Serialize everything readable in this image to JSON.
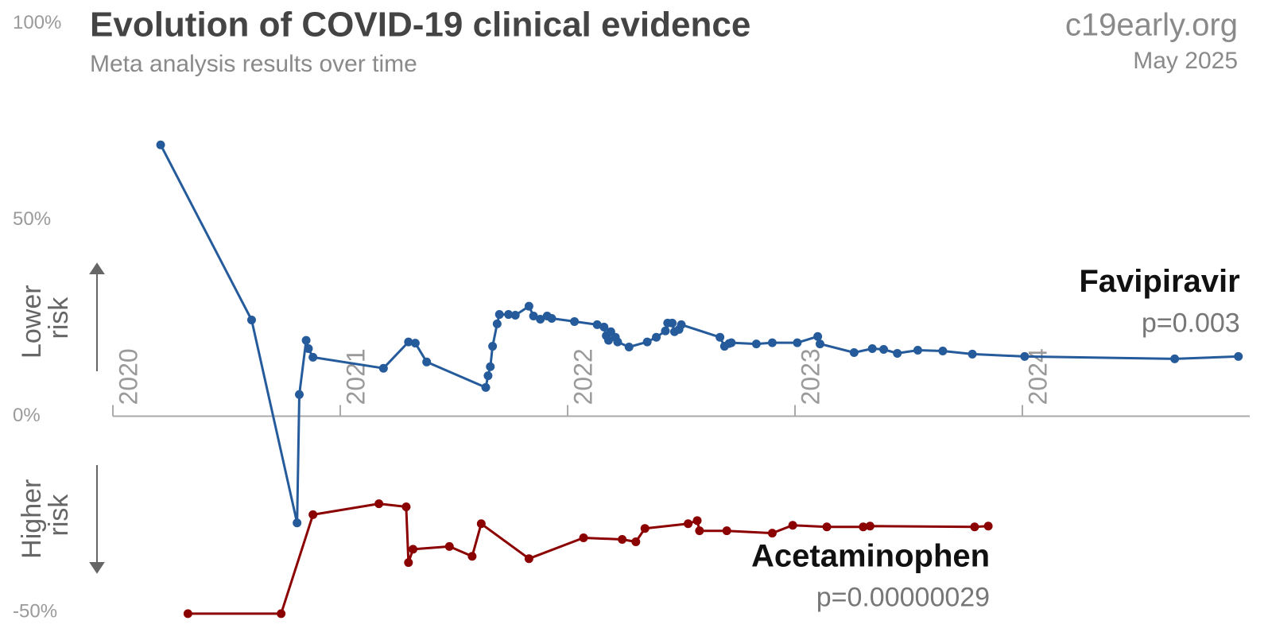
{
  "chart_data": {
    "type": "line",
    "title": "Evolution of COVID-19 clinical evidence",
    "subtitle": "Meta analysis results over time",
    "source": "c19early.org",
    "date": "May 2025",
    "upper_label": [
      "Lower",
      "risk"
    ],
    "lower_label": [
      "Higher",
      "risk"
    ],
    "xlim": [
      2020,
      2025
    ],
    "xticks": [
      2020,
      2021,
      2022,
      2023,
      2024
    ],
    "ylim": [
      -56,
      106
    ],
    "yticks": [
      {
        "value": 100,
        "label": "100%"
      },
      {
        "value": 50,
        "label": "50%"
      },
      {
        "value": 0,
        "label": "0%"
      },
      {
        "value": -50,
        "label": "-50%"
      }
    ],
    "series": [
      {
        "name": "Favipiravir",
        "p": "p=0.003",
        "color": "#255b9b",
        "x": [
          2020.21,
          2020.61,
          2020.81,
          2020.82,
          2020.85,
          2020.86,
          2020.88,
          2021.19,
          2021.3,
          2021.33,
          2021.38,
          2021.64,
          2021.65,
          2021.66,
          2021.67,
          2021.69,
          2021.7,
          2021.74,
          2021.77,
          2021.83,
          2021.85,
          2021.88,
          2021.91,
          2021.93,
          2022.03,
          2022.13,
          2022.16,
          2022.17,
          2022.18,
          2022.19,
          2022.21,
          2022.22,
          2022.27,
          2022.35,
          2022.39,
          2022.43,
          2022.44,
          2022.46,
          2022.47,
          2022.49,
          2022.5,
          2022.67,
          2022.69,
          2022.71,
          2022.72,
          2022.83,
          2022.9,
          2023.01,
          2023.1,
          2023.11,
          2023.26,
          2023.34,
          2023.39,
          2023.45,
          2023.54,
          2023.65,
          2023.78,
          2024.01,
          2024.67,
          2024.95
        ],
        "values": [
          69.1,
          24.5,
          -27.2,
          5.5,
          19.3,
          17.2,
          15.0,
          12.2,
          18.9,
          18.6,
          13.8,
          7.3,
          10.3,
          12.6,
          17.8,
          23.5,
          25.9,
          25.9,
          25.7,
          28.0,
          25.5,
          24.7,
          25.5,
          24.9,
          24.1,
          23.3,
          22.7,
          20.5,
          19.3,
          21.5,
          20.1,
          18.9,
          17.6,
          18.9,
          20.1,
          21.7,
          23.7,
          23.7,
          21.5,
          22.1,
          23.3,
          20.1,
          17.8,
          18.5,
          18.7,
          18.4,
          18.7,
          18.7,
          20.3,
          18.4,
          16.2,
          17.2,
          17.0,
          16.0,
          16.8,
          16.6,
          15.8,
          15.2,
          14.6,
          15.2
        ]
      },
      {
        "name": "Acetaminophen",
        "p": "p=0.00000029",
        "color": "#8b0000",
        "x": [
          2020.33,
          2020.74,
          2020.88,
          2021.17,
          2021.29,
          2021.3,
          2021.32,
          2021.48,
          2021.58,
          2021.62,
          2021.83,
          2022.07,
          2022.24,
          2022.3,
          2022.34,
          2022.53,
          2022.57,
          2022.58,
          2022.7,
          2022.9,
          2022.99,
          2023.14,
          2023.3,
          2023.33,
          2023.79,
          2023.85
        ],
        "values": [
          -50.3,
          -50.3,
          -25.1,
          -22.3,
          -23.1,
          -37.3,
          -33.9,
          -33.2,
          -35.7,
          -27.4,
          -36.3,
          -31.0,
          -31.4,
          -32.0,
          -28.6,
          -27.4,
          -26.6,
          -29.2,
          -29.2,
          -29.8,
          -27.8,
          -28.2,
          -28.2,
          -28.0,
          -28.2,
          -28.0
        ]
      }
    ]
  }
}
